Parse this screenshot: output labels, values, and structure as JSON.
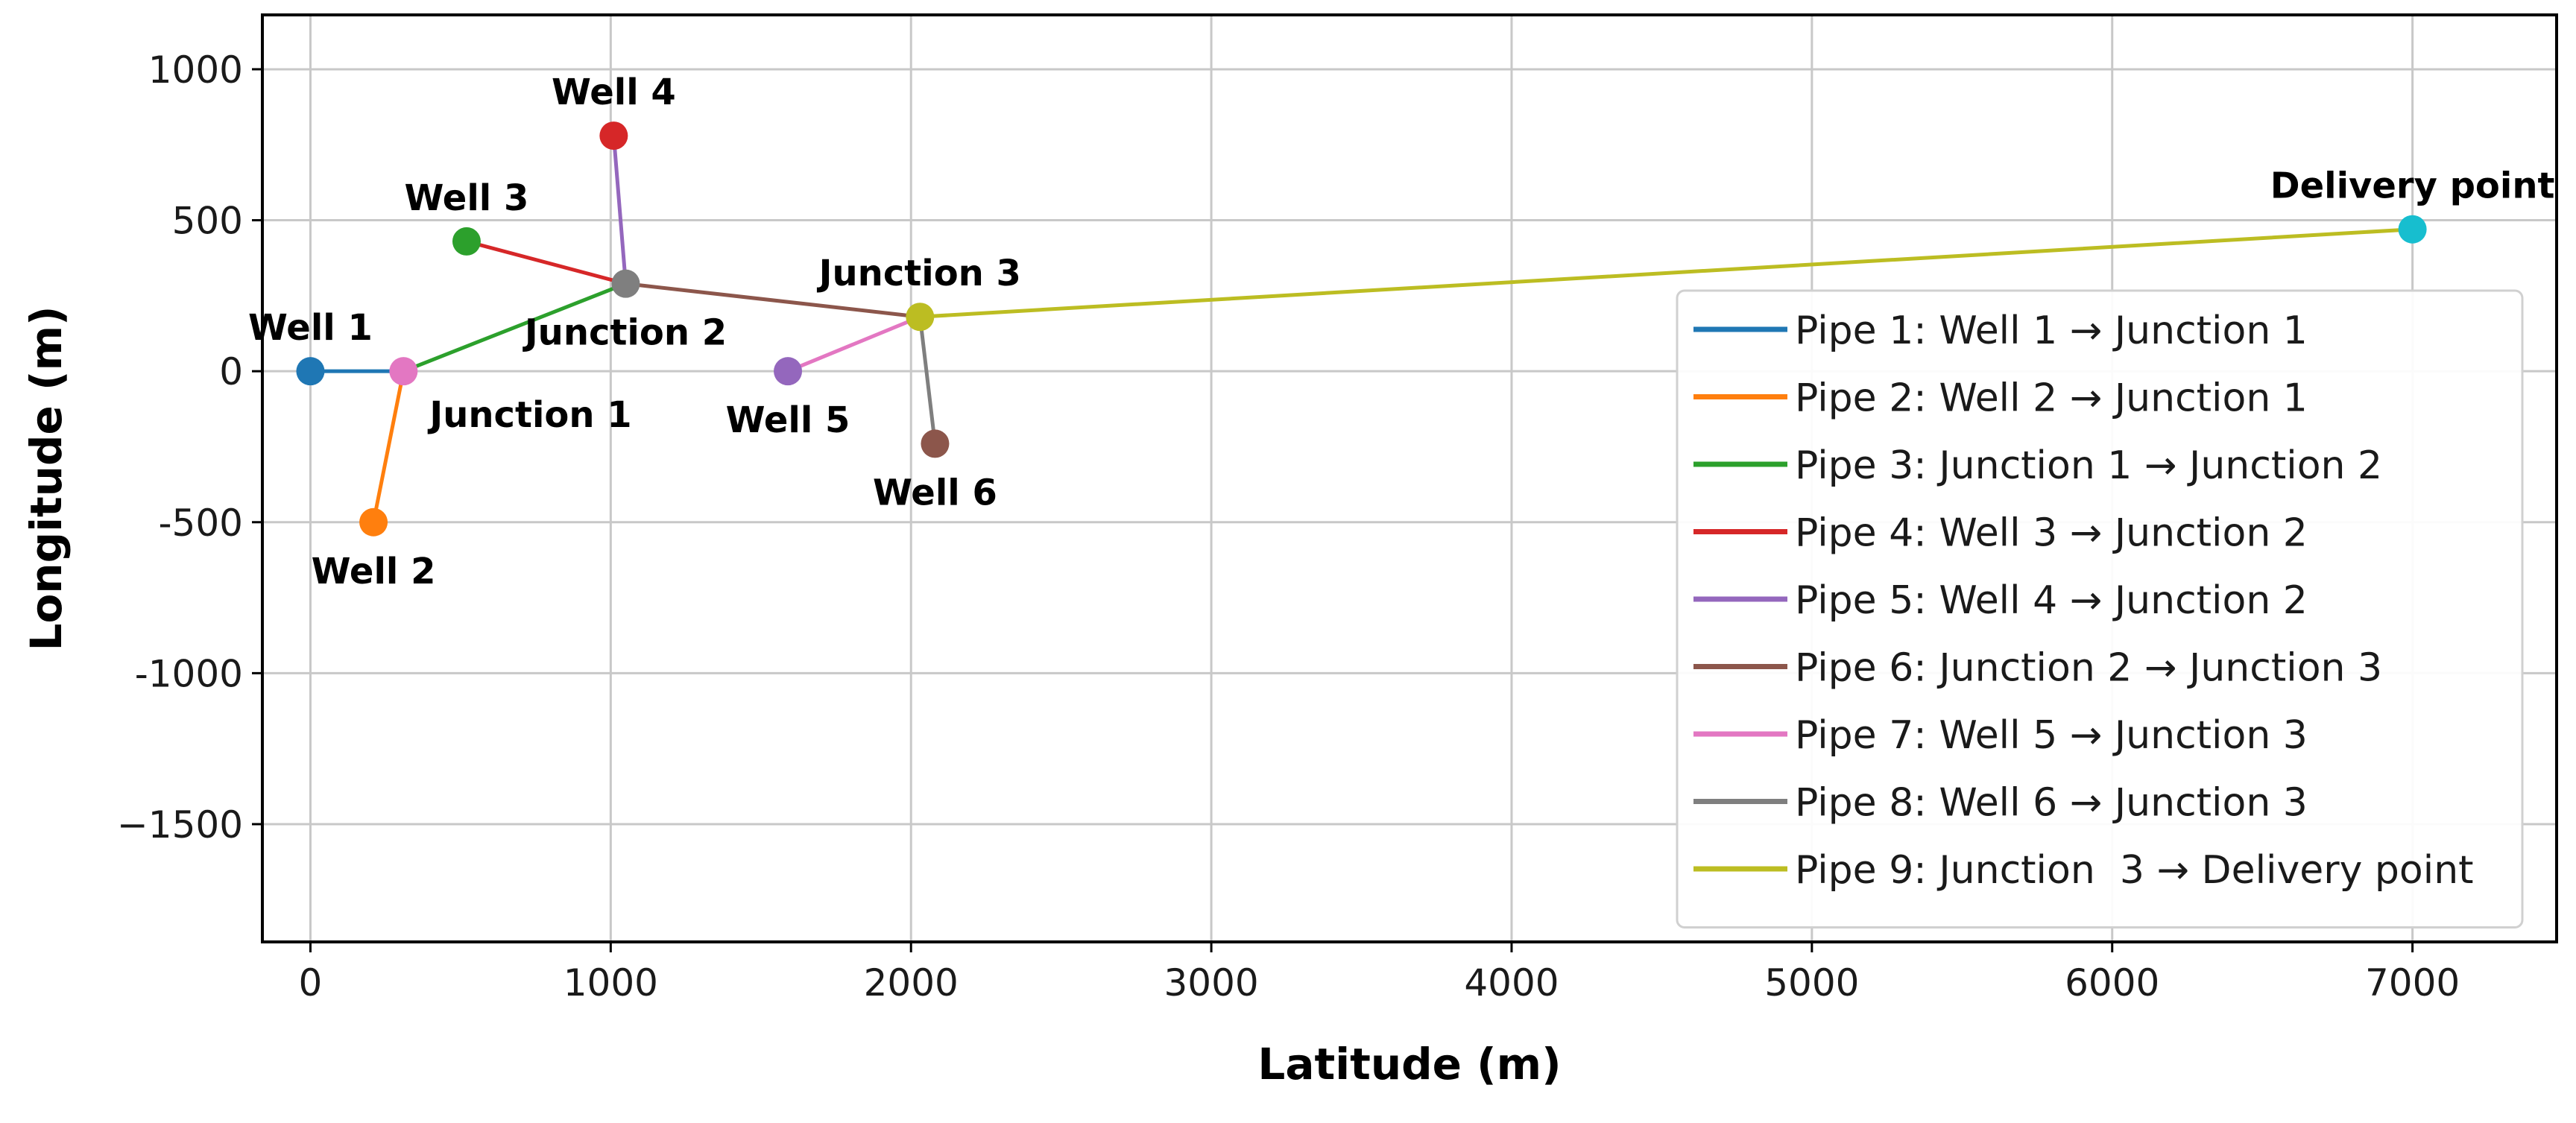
{
  "chart_data": {
    "type": "line",
    "xlabel": "Latitude (m)",
    "ylabel": "Longitude (m)",
    "xlim": [
      -160,
      7480
    ],
    "ylim": [
      -1890,
      1180
    ],
    "xticks": [
      0,
      1000,
      2000,
      3000,
      4000,
      5000,
      6000,
      7000
    ],
    "yticks": [
      1000,
      500,
      0,
      -500,
      -1000,
      -1500
    ],
    "xtick_labels": [
      "0",
      "1000",
      "2000",
      "3000",
      "4000",
      "5000",
      "6000",
      "7000"
    ],
    "ytick_labels": [
      "1000",
      "500",
      "0",
      "-500",
      "-1000",
      "−1500"
    ],
    "grid": true,
    "legend_position": "right",
    "nodes": [
      {
        "id": "well1",
        "label": "Well 1",
        "x": 0,
        "y": 0,
        "color": "#1f77b4",
        "label_pos": "above"
      },
      {
        "id": "junction1",
        "label": "Junction 1",
        "x": 310,
        "y": 0,
        "color": "#e377c2",
        "label_pos": "below-right"
      },
      {
        "id": "well2",
        "label": "Well 2",
        "x": 210,
        "y": -500,
        "color": "#ff7f0e",
        "label_pos": "below"
      },
      {
        "id": "well3",
        "label": "Well 3",
        "x": 520,
        "y": 430,
        "color": "#2ca02c",
        "label_pos": "above"
      },
      {
        "id": "well4",
        "label": "Well 4",
        "x": 1010,
        "y": 780,
        "color": "#d62728",
        "label_pos": "above"
      },
      {
        "id": "junction2",
        "label": "Junction 2",
        "x": 1050,
        "y": 290,
        "color": "#7f7f7f",
        "label_pos": "below"
      },
      {
        "id": "well5",
        "label": "Well 5",
        "x": 1590,
        "y": 0,
        "color": "#9467bd",
        "label_pos": "below"
      },
      {
        "id": "junction3",
        "label": "Junction 3",
        "x": 2030,
        "y": 180,
        "color": "#bcbd22",
        "label_pos": "above"
      },
      {
        "id": "well6",
        "label": "Well 6",
        "x": 2080,
        "y": -240,
        "color": "#8c564b",
        "label_pos": "below"
      },
      {
        "id": "delivery",
        "label": "Delivery point",
        "x": 7000,
        "y": 470,
        "color": "#17becf",
        "label_pos": "above"
      }
    ],
    "series": [
      {
        "name": "Pipe 1: Well 1 → Junction 1",
        "from": "well1",
        "to": "junction1",
        "color": "#1f77b4"
      },
      {
        "name": "Pipe 2: Well 2 → Junction 1",
        "from": "well2",
        "to": "junction1",
        "color": "#ff7f0e"
      },
      {
        "name": "Pipe 3: Junction 1 → Junction 2",
        "from": "junction1",
        "to": "junction2",
        "color": "#2ca02c"
      },
      {
        "name": "Pipe 4: Well 3 → Junction 2",
        "from": "well3",
        "to": "junction2",
        "color": "#d62728"
      },
      {
        "name": "Pipe 5: Well 4 → Junction 2",
        "from": "well4",
        "to": "junction2",
        "color": "#9467bd"
      },
      {
        "name": "Pipe 6: Junction 2 → Junction 3",
        "from": "junction2",
        "to": "junction3",
        "color": "#8c564b"
      },
      {
        "name": "Pipe 7: Well 5 → Junction 3",
        "from": "well5",
        "to": "junction3",
        "color": "#e377c2"
      },
      {
        "name": "Pipe 8: Well 6 → Junction 3",
        "from": "well6",
        "to": "junction3",
        "color": "#7f7f7f"
      },
      {
        "name": "Pipe 9: Junction  3 → Delivery point",
        "from": "junction3",
        "to": "delivery",
        "color": "#bcbd22"
      }
    ]
  }
}
